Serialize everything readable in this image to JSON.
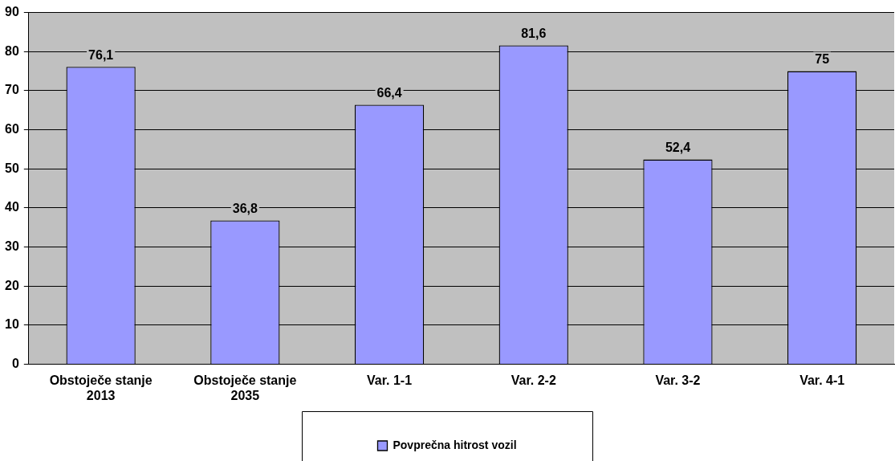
{
  "chart_data": {
    "type": "bar",
    "categories": [
      "Obstoječe stanje 2013",
      "Obstoječe stanje 2035",
      "Var. 1-1",
      "Var. 2-2",
      "Var. 3-2",
      "Var. 4-1"
    ],
    "series": [
      {
        "name": "Povprečna hitrost vozil",
        "color": "#9999ff",
        "values": [
          76.1,
          36.8,
          66.4,
          81.6,
          52.4,
          75
        ],
        "value_labels": [
          "76,1",
          "36,8",
          "66,4",
          "81,6",
          "52,4",
          "75"
        ]
      }
    ],
    "ylim": [
      0,
      90
    ],
    "yticks": [
      0,
      10,
      20,
      30,
      40,
      50,
      60,
      70,
      80,
      90
    ],
    "grid": "y",
    "legend": "bottom"
  }
}
